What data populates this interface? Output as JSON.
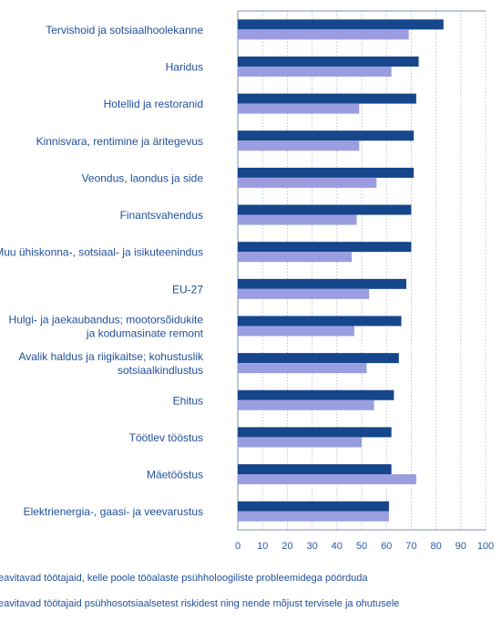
{
  "colors": {
    "series_dark": "#16468c",
    "series_light": "#9a9ee0",
    "label_text": "#1f4f9b",
    "axis_text": "#2a5aa6",
    "grid": "#9aa7c2",
    "frame": "#7f8fb0"
  },
  "chart_data": {
    "type": "bar",
    "orientation": "horizontal",
    "categories": [
      [
        "Tervishoid ja sotsiaalhoolekanne"
      ],
      [
        "Haridus"
      ],
      [
        "Hotellid ja restoranid"
      ],
      [
        "Kinnisvara, rentimine ja äritegevus"
      ],
      [
        "Veondus, laondus ja side"
      ],
      [
        "Finantsvahendus"
      ],
      [
        "Muu ühiskonna-, sotsiaal- ja isikuteenindus"
      ],
      [
        "EU-27"
      ],
      [
        "Hulgi- ja jaekaubandus; mootorsõidukite",
        "ja kodumasinate remont"
      ],
      [
        "Avalik haldus ja riigikaitse; kohustuslik",
        "sotsiaalkindlustus"
      ],
      [
        "Ehitus"
      ],
      [
        "Töötlev tööstus"
      ],
      [
        "Mäetööstus"
      ],
      [
        "Elektrienergia-, gaasi- ja veevarustus"
      ]
    ],
    "series": [
      {
        "name": "eavitavad töötajaid, kelle poole tööalaste psühholoogiliste probleemidega pöörduda",
        "values": [
          83,
          73,
          72,
          71,
          71,
          70,
          70,
          68,
          66,
          65,
          63,
          62,
          62,
          61
        ]
      },
      {
        "name": "eavitavad töötajaid psühhosotsiaalsetest riskidest ning nende mõjust tervisele ja ohutusele",
        "values": [
          69,
          62,
          49,
          49,
          56,
          48,
          46,
          53,
          47,
          52,
          55,
          50,
          72,
          61
        ]
      }
    ],
    "xlim": [
      0,
      100
    ],
    "xticks": [
      "0",
      "10",
      "20",
      "30",
      "40",
      "50",
      "60",
      "70",
      "80",
      "90",
      "100"
    ],
    "grid": true,
    "legend_position": "bottom"
  }
}
